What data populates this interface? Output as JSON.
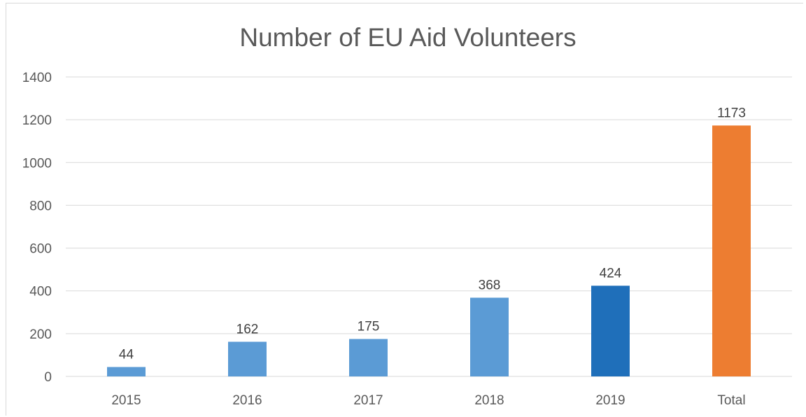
{
  "chart_data": {
    "type": "bar",
    "title": "Number of EU Aid Volunteers",
    "xlabel": "",
    "ylabel": "",
    "categories": [
      "2015",
      "2016",
      "2017",
      "2018",
      "2019",
      "Total"
    ],
    "values": [
      44,
      162,
      175,
      368,
      424,
      1173
    ],
    "data_labels": [
      "44",
      "162",
      "175",
      "368",
      "424",
      "1173"
    ],
    "bar_colors": [
      "#5b9bd5",
      "#5b9bd5",
      "#5b9bd5",
      "#5b9bd5",
      "#1f6fba",
      "#ed7d31"
    ],
    "ylim": [
      0,
      1400
    ],
    "yticks": [
      0,
      200,
      400,
      600,
      800,
      1000,
      1200,
      1400
    ],
    "ytick_labels": [
      "0",
      "200",
      "400",
      "600",
      "800",
      "1000",
      "1200",
      "1400"
    ],
    "grid": true,
    "legend": "none"
  }
}
